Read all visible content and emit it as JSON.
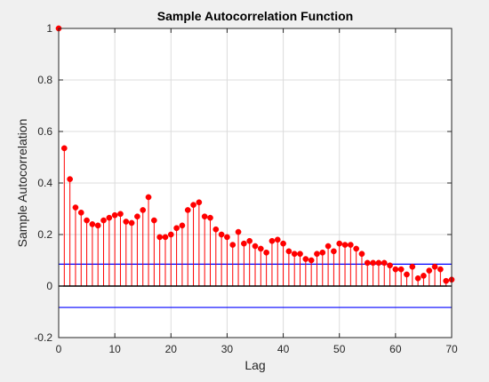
{
  "chart_data": {
    "type": "stem",
    "title": "Sample Autocorrelation Function",
    "xlabel": "Lag",
    "ylabel": "Sample Autocorrelation",
    "xlim": [
      0,
      70
    ],
    "ylim": [
      -0.2,
      1
    ],
    "xticks": [
      0,
      10,
      20,
      30,
      40,
      50,
      60,
      70
    ],
    "yticks": [
      -0.2,
      0,
      0.2,
      0.4,
      0.6,
      0.8,
      1
    ],
    "xtick_labels": [
      "0",
      "10",
      "20",
      "30",
      "40",
      "50",
      "60",
      "70"
    ],
    "ytick_labels": [
      "-0.2",
      "0",
      "0.2",
      "0.4",
      "0.6",
      "0.8",
      "1"
    ],
    "grid": true,
    "colors": {
      "stem": "#ff0000",
      "bounds": "#0000ff",
      "zero_line": "#000000",
      "grid": "#dcdcdc",
      "axes_background": "#ffffff",
      "figure_background": "#f0f0f0"
    },
    "confidence_bounds": [
      0.085,
      -0.083
    ],
    "lags": [
      0,
      1,
      2,
      3,
      4,
      5,
      6,
      7,
      8,
      9,
      10,
      11,
      12,
      13,
      14,
      15,
      16,
      17,
      18,
      19,
      20,
      21,
      22,
      23,
      24,
      25,
      26,
      27,
      28,
      29,
      30,
      31,
      32,
      33,
      34,
      35,
      36,
      37,
      38,
      39,
      40,
      41,
      42,
      43,
      44,
      45,
      46,
      47,
      48,
      49,
      50,
      51,
      52,
      53,
      54,
      55,
      56,
      57,
      58,
      59,
      60,
      61,
      62,
      63,
      64,
      65,
      66,
      67,
      68,
      69,
      70
    ],
    "values": [
      1.0,
      0.535,
      0.415,
      0.305,
      0.285,
      0.255,
      0.24,
      0.235,
      0.255,
      0.265,
      0.275,
      0.28,
      0.25,
      0.245,
      0.27,
      0.295,
      0.345,
      0.255,
      0.19,
      0.19,
      0.2,
      0.225,
      0.235,
      0.295,
      0.315,
      0.325,
      0.27,
      0.265,
      0.22,
      0.2,
      0.19,
      0.16,
      0.21,
      0.165,
      0.175,
      0.155,
      0.145,
      0.13,
      0.175,
      0.18,
      0.165,
      0.135,
      0.125,
      0.125,
      0.105,
      0.1,
      0.125,
      0.13,
      0.155,
      0.135,
      0.165,
      0.16,
      0.16,
      0.145,
      0.125,
      0.09,
      0.09,
      0.09,
      0.09,
      0.08,
      0.065,
      0.065,
      0.045,
      0.075,
      0.03,
      0.04,
      0.06,
      0.075,
      0.065,
      0.02,
      0.025
    ]
  }
}
